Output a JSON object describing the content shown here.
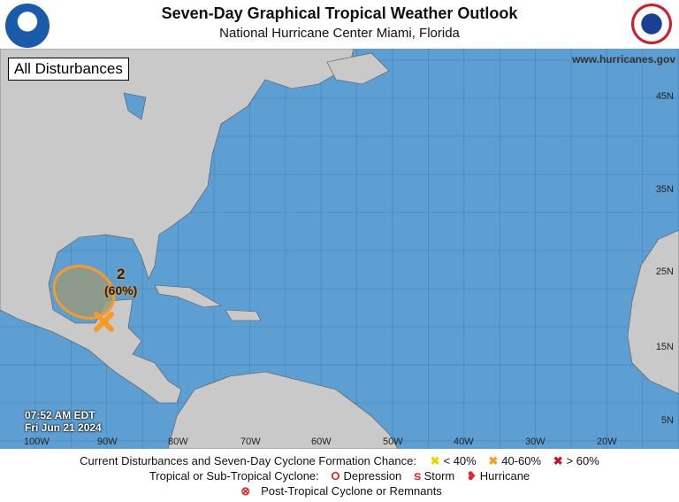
{
  "header": {
    "title": "Seven-Day Graphical Tropical Weather Outlook",
    "subtitle": "National Hurricane Center  Miami, Florida",
    "logo_left": "NOAA",
    "logo_right": "National Weather Service"
  },
  "map": {
    "badge": "All Disturbances",
    "url": "www.hurricanes.gov",
    "lat_labels": [
      "45N",
      "35N",
      "25N",
      "15N",
      "5N"
    ],
    "lon_labels": [
      "100W",
      "90W",
      "80W",
      "70W",
      "60W",
      "50W",
      "40W",
      "30W",
      "20W"
    ],
    "timestamp": {
      "time": "07:52 AM EDT",
      "date": "Fri Jun 21 2024"
    },
    "disturbances": [
      {
        "id": "2",
        "chance": "(60%)",
        "category": "40-60%",
        "color": "#f59b2c"
      }
    ],
    "colors": {
      "ocean": "#5e9fd3",
      "land": "#c9c9c9"
    }
  },
  "legend": {
    "row1_label": "Current Disturbances and Seven-Day Cyclone Formation Chance:",
    "low": "< 40%",
    "mid": "40-60%",
    "high": "> 60%",
    "row2_label": "Tropical or Sub-Tropical Cyclone:",
    "depression": "Depression",
    "storm": "Storm",
    "hurricane": "Hurricane",
    "post": "Post-Tropical Cyclone or Remnants",
    "colors": {
      "low": "#f4e81c",
      "mid": "#f59b2c",
      "high": "#c0172c"
    }
  }
}
